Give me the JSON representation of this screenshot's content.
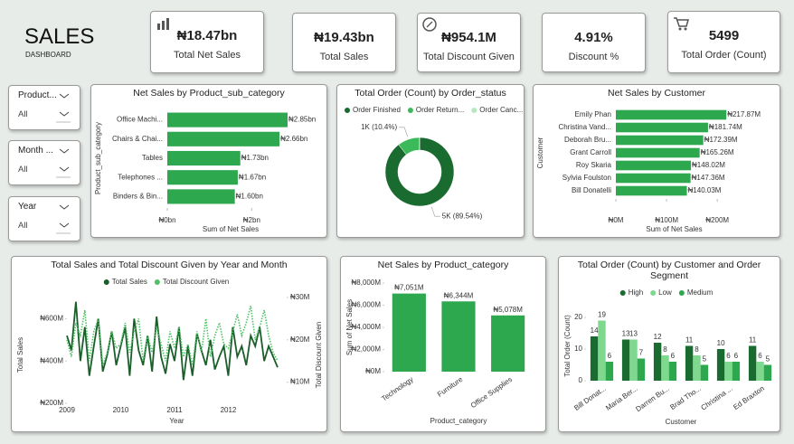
{
  "header": {
    "title": "SALES",
    "subtitle": "DASHBOARD"
  },
  "kpis": [
    {
      "value": "₦18.47bn",
      "label": "Total Net Sales"
    },
    {
      "value": "₦19.43bn",
      "label": "Total Sales"
    },
    {
      "value": "₦954.1M",
      "label": "Total Discount Given"
    },
    {
      "value": "4.91%",
      "label": "Discount %"
    },
    {
      "value": "5499",
      "label": "Total Order (Count)"
    }
  ],
  "slicers": [
    {
      "label": "Product...",
      "value": "All"
    },
    {
      "label": "Month ...",
      "value": "All"
    },
    {
      "label": "Year",
      "value": "All"
    }
  ],
  "chart_data": [
    {
      "type": "bar",
      "horizontal": true,
      "title": "Net Sales by Product_sub_category",
      "categories": [
        "Office Machi...",
        "Chairs & Chai...",
        "Tables",
        "Telephones ...",
        "Binders & Bin..."
      ],
      "values": [
        2.85,
        2.66,
        1.73,
        1.67,
        1.6
      ],
      "value_labels": [
        "₦2.85bn",
        "₦2.66bn",
        "₦1.73bn",
        "₦1.67bn",
        "₦1.60bn"
      ],
      "color": "#2ea84f",
      "xlim": [
        0,
        3
      ],
      "xticks": [
        {
          "value": 0,
          "label": "₦0bn"
        },
        {
          "value": 2,
          "label": "₦2bn"
        }
      ],
      "xlabel": "Sum of Net Sales",
      "ylabel": "Product_sub_category"
    },
    {
      "type": "pie",
      "donut": true,
      "title": "Total Order (Count) by Order_status",
      "categories": [
        "Order Finished",
        "Order Return...",
        "Order Canc..."
      ],
      "values": [
        89.54,
        10.4,
        0.06
      ],
      "value_labels": [
        "5K (89.54%)",
        "1K (10.4%)",
        null
      ],
      "colors": [
        "#1a6b2f",
        "#3cb95a",
        "#b8e6c0"
      ]
    },
    {
      "type": "bar",
      "horizontal": true,
      "title": "Net Sales by Customer",
      "categories": [
        "Emily Phan",
        "Christina Vand...",
        "Deborah Bru...",
        "Grant Carroll",
        "Roy Skaria",
        "Sylvia Foulston",
        "Bill Donatelli"
      ],
      "values": [
        217.87,
        181.74,
        172.39,
        165.26,
        148.02,
        147.36,
        140.03
      ],
      "value_labels": [
        "₦217.87M",
        "₦181.74M",
        "₦172.39M",
        "₦165.26M",
        "₦148.02M",
        "₦147.36M",
        "₦140.03M"
      ],
      "color": "#2ea84f",
      "xlim": [
        0,
        230
      ],
      "xticks": [
        {
          "value": 0,
          "label": "₦0M"
        },
        {
          "value": 100,
          "label": "₦100M"
        },
        {
          "value": 200,
          "label": "₦200M"
        }
      ],
      "xlabel": "Sum of Net Sales",
      "ylabel": "Customer"
    },
    {
      "type": "line",
      "title": "Total Sales and Total Discount Given by Year and Month",
      "categories": [
        "2009",
        null,
        null,
        null,
        null,
        null,
        null,
        null,
        null,
        null,
        null,
        null,
        "2010",
        null,
        null,
        null,
        null,
        null,
        null,
        null,
        null,
        null,
        null,
        null,
        "2011",
        null,
        null,
        null,
        null,
        null,
        null,
        null,
        null,
        null,
        null,
        null,
        "2012",
        null,
        null,
        null,
        null,
        null,
        null,
        null,
        null,
        null,
        null,
        null
      ],
      "series": [
        {
          "name": "Total Sales",
          "color": "#1a5e2a",
          "style": "solid",
          "values": [
            520,
            450,
            680,
            400,
            560,
            330,
            470,
            600,
            350,
            430,
            540,
            380,
            470,
            560,
            330,
            600,
            450,
            380,
            520,
            350,
            610,
            420,
            340,
            480,
            400,
            560,
            310,
            470,
            330,
            530,
            450,
            380,
            500,
            360,
            420,
            470,
            330,
            560,
            420,
            470,
            380,
            520,
            470,
            560,
            400,
            470,
            420,
            370
          ]
        },
        {
          "name": "Total Discount Given",
          "color": "#4cc264",
          "style": "dotted",
          "axis": "y2",
          "values": [
            20,
            16,
            24,
            21,
            27,
            15,
            22,
            25,
            14,
            17,
            22,
            18,
            19,
            24,
            17,
            22,
            25,
            15,
            21,
            17,
            23,
            19,
            15,
            22,
            18,
            23,
            16,
            19,
            14,
            22,
            17,
            25,
            16,
            21,
            24,
            19,
            18,
            22,
            26,
            21,
            24,
            28,
            20,
            23,
            27,
            21,
            17,
            15
          ]
        }
      ],
      "ylim": [
        200,
        700
      ],
      "yticks": [
        {
          "value": 200,
          "label": "₦200M"
        },
        {
          "value": 400,
          "label": "₦400M"
        },
        {
          "value": 600,
          "label": "₦600M"
        }
      ],
      "y2lim": [
        5,
        30
      ],
      "y2ticks": [
        {
          "value": 10,
          "label": "₦10M"
        },
        {
          "value": 20,
          "label": "₦20M"
        },
        {
          "value": 30,
          "label": "₦30M"
        }
      ],
      "xlabel": "Year",
      "ylabel": "Total Sales",
      "y2label": "Total Discount Given"
    },
    {
      "type": "bar",
      "title": "Net Sales by Product_category",
      "categories": [
        "Technology",
        "Furniture",
        "Office Supplies"
      ],
      "values": [
        7051,
        6344,
        5078
      ],
      "value_labels": [
        "₦7,051M",
        "₦6,344M",
        "₦5,078M"
      ],
      "color": "#2ea84f",
      "ylim": [
        0,
        8000
      ],
      "yticks": [
        {
          "value": 0,
          "label": "₦0M"
        },
        {
          "value": 2000,
          "label": "₦2,000M"
        },
        {
          "value": 4000,
          "label": "₦4,000M"
        },
        {
          "value": 6000,
          "label": "₦6,000M"
        },
        {
          "value": 8000,
          "label": "₦8,000M"
        }
      ],
      "xlabel": "Product_category",
      "ylabel": "Sum of Net Sales"
    },
    {
      "type": "bar",
      "title": "Total Order (Count) by Customer and Order Segment",
      "categories": [
        "Bill Donat...",
        "Maria Ber...",
        "Darren Bu...",
        "Brad Tho...",
        "Christina ...",
        "Ed Braxton"
      ],
      "series": [
        {
          "name": "High",
          "color": "#1a6b2f",
          "values": [
            14,
            13,
            12,
            11,
            10,
            11
          ]
        },
        {
          "name": "Low",
          "color": "#7ed98f",
          "values": [
            19,
            13,
            8,
            8,
            6,
            6
          ]
        },
        {
          "name": "Medium",
          "color": "#2ea84f",
          "values": [
            6,
            7,
            6,
            5,
            6,
            5
          ]
        }
      ],
      "ylim": [
        0,
        22
      ],
      "yticks": [
        0,
        10,
        20
      ],
      "xlabel": "Customer",
      "ylabel": "Total Order (Count)"
    }
  ]
}
